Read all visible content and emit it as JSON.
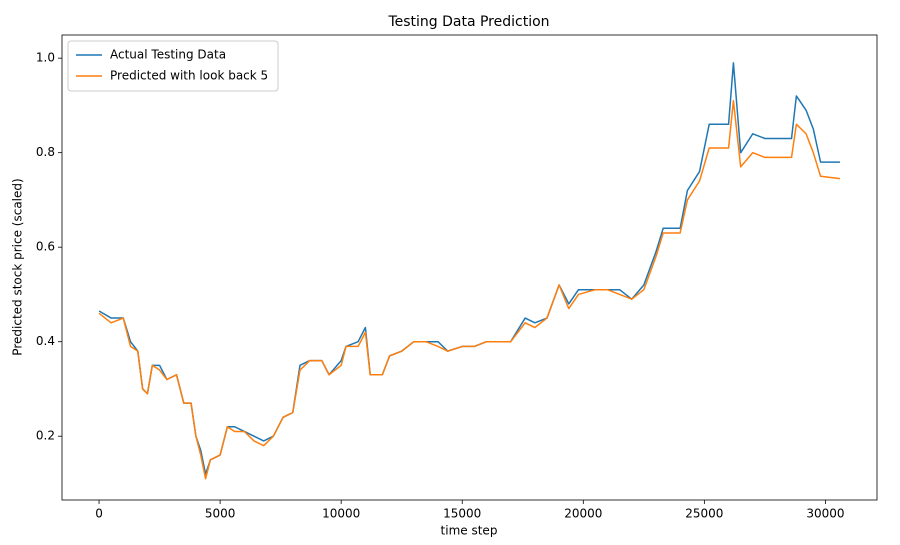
{
  "chart_data": {
    "type": "line",
    "title": "Testing Data Prediction",
    "xlabel": "time step",
    "ylabel": "Predicted stock price (scaled)",
    "x": [
      0,
      500,
      1000,
      1300,
      1600,
      1800,
      2000,
      2200,
      2500,
      2800,
      3200,
      3500,
      3800,
      4000,
      4200,
      4400,
      4600,
      5000,
      5300,
      5600,
      6000,
      6400,
      6800,
      7200,
      7600,
      8000,
      8300,
      8700,
      9200,
      9500,
      10000,
      10200,
      10700,
      11000,
      11200,
      11700,
      12000,
      12500,
      13000,
      13500,
      14000,
      14400,
      15000,
      15500,
      16000,
      16500,
      17000,
      17600,
      18000,
      18500,
      19000,
      19400,
      19800,
      20500,
      21000,
      21500,
      22000,
      22500,
      23000,
      23300,
      24000,
      24300,
      24800,
      25200,
      26000,
      26200,
      26500,
      27000,
      27500,
      28000,
      28600,
      28800,
      29200,
      29500,
      29800,
      30600
    ],
    "series": [
      {
        "name": "Actual Testing Data",
        "color": "#1f77b4",
        "values": [
          0.465,
          0.45,
          0.45,
          0.4,
          0.38,
          0.3,
          0.29,
          0.35,
          0.35,
          0.32,
          0.33,
          0.27,
          0.27,
          0.2,
          0.17,
          0.12,
          0.15,
          0.16,
          0.22,
          0.22,
          0.21,
          0.2,
          0.19,
          0.2,
          0.24,
          0.25,
          0.35,
          0.36,
          0.36,
          0.33,
          0.36,
          0.39,
          0.4,
          0.43,
          0.33,
          0.33,
          0.37,
          0.38,
          0.4,
          0.4,
          0.4,
          0.38,
          0.39,
          0.39,
          0.4,
          0.4,
          0.4,
          0.45,
          0.44,
          0.45,
          0.52,
          0.48,
          0.51,
          0.51,
          0.51,
          0.51,
          0.49,
          0.52,
          0.59,
          0.64,
          0.64,
          0.72,
          0.76,
          0.86,
          0.86,
          0.99,
          0.8,
          0.84,
          0.83,
          0.83,
          0.83,
          0.92,
          0.89,
          0.85,
          0.78,
          0.78
        ]
      },
      {
        "name": "Predicted with look back 5",
        "color": "#ff7f0e",
        "values": [
          0.46,
          0.44,
          0.45,
          0.39,
          0.38,
          0.3,
          0.29,
          0.35,
          0.34,
          0.32,
          0.33,
          0.27,
          0.27,
          0.2,
          0.16,
          0.11,
          0.15,
          0.16,
          0.22,
          0.21,
          0.21,
          0.19,
          0.18,
          0.2,
          0.24,
          0.25,
          0.34,
          0.36,
          0.36,
          0.33,
          0.35,
          0.39,
          0.39,
          0.42,
          0.33,
          0.33,
          0.37,
          0.38,
          0.4,
          0.4,
          0.39,
          0.38,
          0.39,
          0.39,
          0.4,
          0.4,
          0.4,
          0.44,
          0.43,
          0.45,
          0.52,
          0.47,
          0.5,
          0.51,
          0.51,
          0.5,
          0.49,
          0.51,
          0.58,
          0.63,
          0.63,
          0.7,
          0.74,
          0.81,
          0.81,
          0.91,
          0.77,
          0.8,
          0.79,
          0.79,
          0.79,
          0.86,
          0.84,
          0.8,
          0.75,
          0.745
        ]
      }
    ],
    "xlim": [
      -1530,
      32130
    ],
    "ylim": [
      0.065,
      1.049
    ],
    "xticks": [
      0,
      5000,
      10000,
      15000,
      20000,
      25000,
      30000
    ],
    "yticks": [
      0.2,
      0.4,
      0.6,
      0.8,
      {
        "value": 1,
        "label": "1.0"
      }
    ],
    "legend": "upper left",
    "grid": false
  }
}
